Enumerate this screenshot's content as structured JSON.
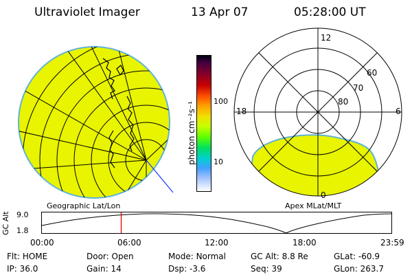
{
  "header": {
    "title": "Ultraviolet Imager",
    "date": "13 Apr 07",
    "time": "05:28:00 UT"
  },
  "colors": {
    "fill": "#e8f400",
    "rim": "#5fb3d6",
    "accent_line": "#e00000",
    "blue_line": "#2a3cff"
  },
  "colorbar": {
    "unit_label": "photon cm⁻²s⁻¹",
    "tick_labels": [
      "100",
      "10"
    ],
    "scale": "log"
  },
  "apex_plot": {
    "mlt_labels": {
      "top": "12",
      "bottom": "0",
      "left": "18",
      "right": "6"
    },
    "mlat_labels": [
      "60",
      "70",
      "80"
    ]
  },
  "panel_captions": {
    "left": "Geographic Lat/Lon",
    "right": "Apex MLat/MLT"
  },
  "altitude_plot": {
    "ylabel": "GC Alt",
    "ytick_labels": [
      "9.0",
      "1.8"
    ],
    "xtick_labels": [
      "00:00",
      "06:00",
      "12:00",
      "18:00",
      "23:59"
    ],
    "current_marker_time": "05:28"
  },
  "info": {
    "row1": [
      {
        "label": "Flt:",
        "value": "HOME"
      },
      {
        "label": "Door:",
        "value": "Open"
      },
      {
        "label": "Mode:",
        "value": "Normal"
      },
      {
        "label": "GC Alt:",
        "value": "8.8 Re"
      },
      {
        "label": "GLat:",
        "value": "-60.9"
      }
    ],
    "row2": [
      {
        "label": "IP:",
        "value": "36.0"
      },
      {
        "label": "Gain:",
        "value": "14"
      },
      {
        "label": "Dsp:",
        "value": "-3.6"
      },
      {
        "label": "Seq:",
        "value": "39"
      },
      {
        "label": "GLon:",
        "value": "263.7"
      }
    ]
  }
}
